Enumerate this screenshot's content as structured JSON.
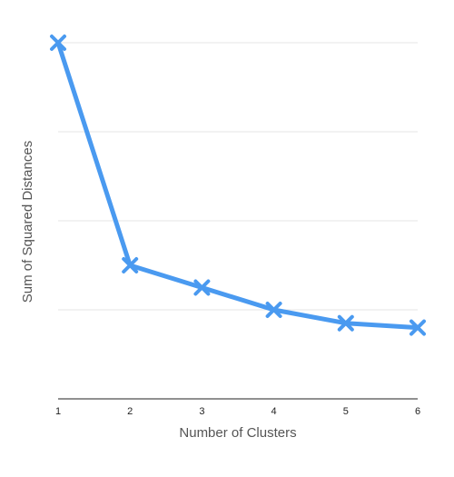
{
  "chart_data": {
    "type": "line",
    "x": [
      1,
      2,
      3,
      4,
      5,
      6
    ],
    "series": [
      {
        "values": [
          8,
          3,
          2.5,
          2,
          1.7,
          1.6
        ]
      }
    ],
    "xlabel": "Number of Clusters",
    "ylabel": "Sum of Squared Distances",
    "xlim": [
      1,
      6
    ],
    "ylim": [
      0,
      8
    ],
    "yticks": [
      0,
      2,
      4,
      6,
      8
    ],
    "y_tick_labels_visible": false,
    "grid": "horizontal",
    "marker": "x",
    "colors": {
      "line": "#4a9af0",
      "grid": "#e6e6e6",
      "axis": "#222222"
    }
  }
}
